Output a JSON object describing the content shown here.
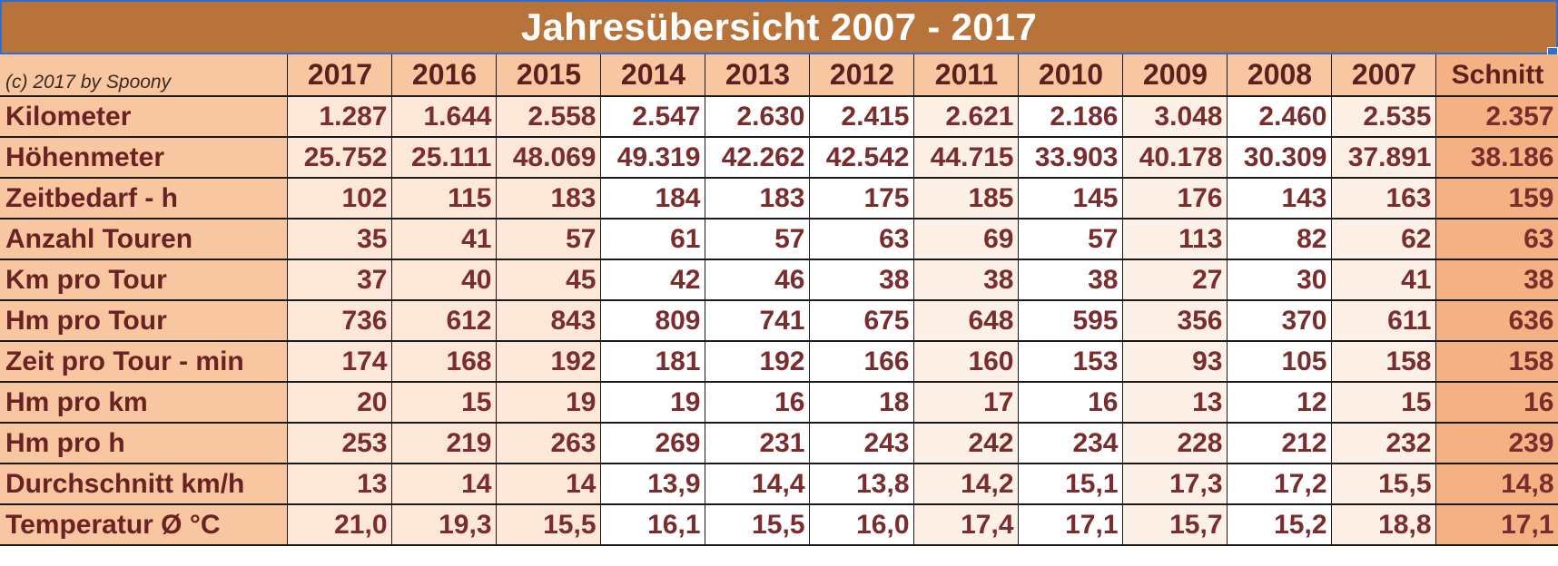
{
  "title": "Jahresübersicht 2007 - 2017",
  "credit": "(c) 2017 by Spoony",
  "years": [
    "2017",
    "2016",
    "2015",
    "2014",
    "2013",
    "2012",
    "2011",
    "2010",
    "2009",
    "2008",
    "2007"
  ],
  "avg_label": "Schnitt",
  "rows": [
    {
      "label": "Kilometer",
      "values": [
        "1.287",
        "1.644",
        "2.558",
        "2.547",
        "2.630",
        "2.415",
        "2.621",
        "2.186",
        "3.048",
        "2.460",
        "2.535"
      ],
      "avg": "2.357"
    },
    {
      "label": "Höhenmeter",
      "values": [
        "25.752",
        "25.111",
        "48.069",
        "49.319",
        "42.262",
        "42.542",
        "44.715",
        "33.903",
        "40.178",
        "30.309",
        "37.891"
      ],
      "avg": "38.186"
    },
    {
      "label": "Zeitbedarf - h",
      "values": [
        "102",
        "115",
        "183",
        "184",
        "183",
        "175",
        "185",
        "145",
        "176",
        "143",
        "163"
      ],
      "avg": "159"
    },
    {
      "label": "Anzahl Touren",
      "values": [
        "35",
        "41",
        "57",
        "61",
        "57",
        "63",
        "69",
        "57",
        "113",
        "82",
        "62"
      ],
      "avg": "63"
    },
    {
      "label": "Km pro Tour",
      "values": [
        "37",
        "40",
        "45",
        "42",
        "46",
        "38",
        "38",
        "38",
        "27",
        "30",
        "41"
      ],
      "avg": "38"
    },
    {
      "label": "Hm pro Tour",
      "values": [
        "736",
        "612",
        "843",
        "809",
        "741",
        "675",
        "648",
        "595",
        "356",
        "370",
        "611"
      ],
      "avg": "636"
    },
    {
      "label": "Zeit pro Tour - min",
      "values": [
        "174",
        "168",
        "192",
        "181",
        "192",
        "166",
        "160",
        "153",
        "93",
        "105",
        "158"
      ],
      "avg": "158"
    },
    {
      "label": "Hm pro km",
      "values": [
        "20",
        "15",
        "19",
        "19",
        "16",
        "18",
        "17",
        "16",
        "13",
        "12",
        "15"
      ],
      "avg": "16"
    },
    {
      "label": "Hm pro h",
      "values": [
        "253",
        "219",
        "263",
        "269",
        "231",
        "243",
        "242",
        "234",
        "228",
        "212",
        "232"
      ],
      "avg": "239"
    },
    {
      "label": "Durchschnitt km/h",
      "values": [
        "13",
        "14",
        "14",
        "13,9",
        "14,4",
        "13,8",
        "14,2",
        "15,1",
        "17,3",
        "17,2",
        "15,5"
      ],
      "avg": "14,8"
    },
    {
      "label": "Temperatur Ø °C",
      "values": [
        "21,0",
        "19,3",
        "15,5",
        "16,1",
        "15,5",
        "16,0",
        "17,4",
        "17,1",
        "15,7",
        "15,2",
        "18,8"
      ],
      "avg": "17,1"
    }
  ],
  "colors": {
    "title_bg": "#b8733a",
    "label_bg": "#f8c6a0",
    "avg_bg": "#f4b183",
    "value_text": "#7b2c2c",
    "selection": "#2f6fd3"
  }
}
